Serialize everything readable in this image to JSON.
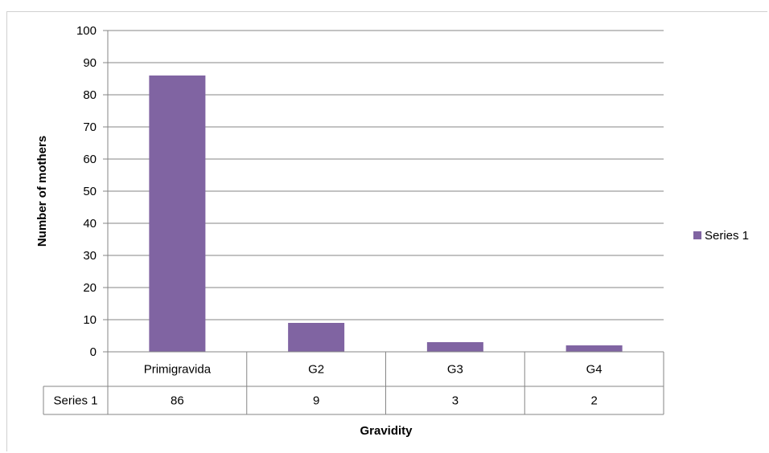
{
  "chart_data": {
    "type": "bar",
    "categories": [
      "Primigravida",
      "G2",
      "G3",
      "G4"
    ],
    "series": [
      {
        "name": "Series 1",
        "values": [
          86,
          9,
          3,
          2
        ],
        "color": "#8064a2"
      }
    ],
    "xlabel": "Gravidity",
    "ylabel": "Number of mothers",
    "ylim": [
      0,
      100
    ],
    "yticks": [
      0,
      10,
      20,
      30,
      40,
      50,
      60,
      70,
      80,
      90,
      100
    ],
    "grid": true,
    "legend": {
      "position": "right",
      "entries": [
        "Series 1"
      ]
    },
    "data_table": {
      "row_label": "Series 1",
      "values": [
        "86",
        "9",
        "3",
        "2"
      ]
    }
  },
  "colors": {
    "bar": "#8064a2",
    "gridline": "#868686",
    "table_border": "#868686"
  }
}
